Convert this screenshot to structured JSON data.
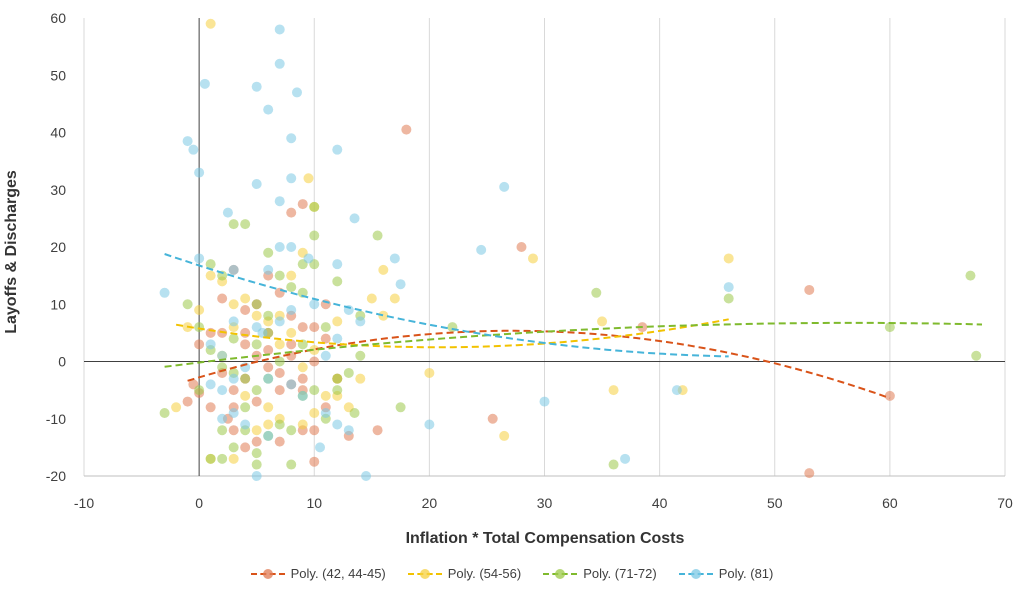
{
  "chart_data": {
    "type": "scatter",
    "title": "",
    "xlabel": "Inflation * Total Compensation Costs",
    "ylabel": "Layoffs & Discharges",
    "xlim": [
      -10,
      70
    ],
    "ylim": [
      -20,
      60
    ],
    "x_ticks": [
      -10,
      0,
      10,
      20,
      30,
      40,
      50,
      60,
      70
    ],
    "y_ticks": [
      -20,
      -10,
      0,
      10,
      20,
      30,
      40,
      50,
      60
    ],
    "grid": "vertical",
    "legend_position": "bottom",
    "series": [
      {
        "name": "Poly. (42, 44-45)",
        "color": "#e07b54",
        "trend_color": "#d95319",
        "trend_x": [
          -1,
          60
        ],
        "points": [
          [
            18,
            40.5
          ],
          [
            9,
            27.5
          ],
          [
            8,
            26
          ],
          [
            28,
            20
          ],
          [
            53,
            12.5
          ],
          [
            38.5,
            6
          ],
          [
            60,
            -6
          ],
          [
            53,
            -19.5
          ],
          [
            25.5,
            -10
          ],
          [
            15.5,
            -12
          ],
          [
            13,
            -13
          ],
          [
            10,
            -17.5
          ],
          [
            4,
            -15
          ],
          [
            2.5,
            -10
          ],
          [
            3,
            -8
          ],
          [
            5,
            -7
          ],
          [
            7,
            -5
          ],
          [
            9,
            -5
          ],
          [
            11,
            -8
          ],
          [
            12,
            -3
          ],
          [
            10,
            0
          ],
          [
            8,
            1
          ],
          [
            6,
            2
          ],
          [
            4,
            3
          ],
          [
            2,
            5
          ],
          [
            0,
            3
          ],
          [
            -0.5,
            -4
          ],
          [
            0,
            -5.5
          ],
          [
            -1,
            -7
          ],
          [
            1,
            -8
          ],
          [
            3,
            -12
          ],
          [
            5,
            -14
          ],
          [
            7,
            -14
          ],
          [
            9,
            -12
          ],
          [
            10,
            -12
          ],
          [
            11,
            4
          ],
          [
            11,
            10
          ],
          [
            10,
            6
          ],
          [
            9,
            6
          ],
          [
            8,
            8
          ],
          [
            7,
            12
          ],
          [
            6,
            15
          ],
          [
            5,
            10
          ],
          [
            4,
            9
          ],
          [
            3,
            16
          ],
          [
            2,
            11
          ],
          [
            1,
            5
          ],
          [
            2,
            -2
          ],
          [
            4,
            -3
          ],
          [
            6,
            -1
          ],
          [
            8,
            -4
          ],
          [
            9,
            -3
          ],
          [
            7,
            -2
          ],
          [
            5,
            1
          ],
          [
            3,
            -5
          ],
          [
            4,
            5
          ],
          [
            6,
            5
          ],
          [
            8,
            3
          ]
        ]
      },
      {
        "name": "Poly. (54-56)",
        "color": "#f5d040",
        "trend_color": "#f2c200",
        "trend_x": [
          -2,
          46
        ],
        "points": [
          [
            1,
            59
          ],
          [
            9.5,
            32
          ],
          [
            10,
            27
          ],
          [
            29,
            18
          ],
          [
            46,
            18
          ],
          [
            35,
            7
          ],
          [
            26.5,
            -13
          ],
          [
            36,
            -5
          ],
          [
            42,
            -5
          ],
          [
            20,
            -2
          ],
          [
            14,
            -3
          ],
          [
            15,
            11
          ],
          [
            16,
            16
          ],
          [
            17,
            11
          ],
          [
            13,
            -8
          ],
          [
            12,
            -6
          ],
          [
            9,
            -1
          ],
          [
            7,
            3
          ],
          [
            5,
            8
          ],
          [
            3,
            10
          ],
          [
            2,
            14
          ],
          [
            1,
            15
          ],
          [
            0,
            9
          ],
          [
            -1,
            6
          ],
          [
            -2,
            -8
          ],
          [
            1,
            -17
          ],
          [
            3,
            -17
          ],
          [
            5,
            -12
          ],
          [
            7,
            -10
          ],
          [
            9,
            -11
          ],
          [
            10,
            -9
          ],
          [
            11,
            -6
          ],
          [
            12,
            -3
          ],
          [
            8,
            5
          ],
          [
            6,
            7
          ],
          [
            4,
            11
          ],
          [
            3,
            6
          ],
          [
            2,
            1
          ],
          [
            4,
            -6
          ],
          [
            6,
            -8
          ],
          [
            7,
            8
          ],
          [
            9,
            19
          ],
          [
            8,
            15
          ],
          [
            6,
            -11
          ],
          [
            10,
            2
          ],
          [
            12,
            7
          ],
          [
            16,
            8
          ]
        ]
      },
      {
        "name": "Poly. (71-72)",
        "color": "#9cc94a",
        "trend_color": "#7fba2d",
        "trend_x": [
          -3,
          68
        ],
        "points": [
          [
            67,
            15
          ],
          [
            67.5,
            1
          ],
          [
            60,
            6
          ],
          [
            46,
            11
          ],
          [
            34.5,
            12
          ],
          [
            36,
            -18
          ],
          [
            22,
            6
          ],
          [
            17.5,
            -8
          ],
          [
            15.5,
            22
          ],
          [
            13.5,
            -9
          ],
          [
            12,
            -3
          ],
          [
            10,
            22
          ],
          [
            10,
            27
          ],
          [
            10,
            17
          ],
          [
            9,
            17
          ],
          [
            9,
            12
          ],
          [
            8,
            13
          ],
          [
            7,
            15
          ],
          [
            6,
            19
          ],
          [
            5,
            10
          ],
          [
            4,
            24
          ],
          [
            3,
            24
          ],
          [
            2,
            15
          ],
          [
            1,
            17
          ],
          [
            0,
            6
          ],
          [
            -1,
            10
          ],
          [
            -3,
            -9
          ],
          [
            1,
            -17
          ],
          [
            2,
            -17
          ],
          [
            3,
            -15
          ],
          [
            4,
            -12
          ],
          [
            5,
            -16
          ],
          [
            6,
            -13
          ],
          [
            7,
            -11
          ],
          [
            8,
            -12
          ],
          [
            9,
            -6
          ],
          [
            10,
            -5
          ],
          [
            11,
            -10
          ],
          [
            12,
            -5
          ],
          [
            13,
            -2
          ],
          [
            14,
            1
          ],
          [
            7,
            0
          ],
          [
            6,
            -3
          ],
          [
            5,
            -5
          ],
          [
            4,
            -3
          ],
          [
            3,
            -2
          ],
          [
            2,
            -1
          ],
          [
            1,
            2
          ],
          [
            0,
            -5
          ],
          [
            3,
            4
          ],
          [
            5,
            3
          ],
          [
            6,
            8
          ],
          [
            8,
            -18
          ],
          [
            5,
            -18
          ],
          [
            9,
            3
          ],
          [
            11,
            6
          ],
          [
            2,
            -12
          ],
          [
            4,
            -8
          ],
          [
            6,
            5
          ],
          [
            14,
            8
          ],
          [
            12,
            14
          ]
        ]
      },
      {
        "name": "Poly. (81)",
        "color": "#7cc8e4",
        "trend_color": "#46b4d9",
        "trend_x": [
          -3,
          46
        ],
        "points": [
          [
            7,
            58
          ],
          [
            7,
            52
          ],
          [
            0.5,
            48.5
          ],
          [
            5,
            48
          ],
          [
            8.5,
            47
          ],
          [
            6,
            44
          ],
          [
            8,
            39
          ],
          [
            -1,
            38.5
          ],
          [
            -0.5,
            37
          ],
          [
            12,
            37
          ],
          [
            0,
            33
          ],
          [
            5,
            31
          ],
          [
            8,
            32
          ],
          [
            26.5,
            30.5
          ],
          [
            2.5,
            26
          ],
          [
            7,
            28
          ],
          [
            13.5,
            25
          ],
          [
            24.5,
            19.5
          ],
          [
            17,
            18
          ],
          [
            46,
            13
          ],
          [
            17.5,
            13.5
          ],
          [
            -3,
            12
          ],
          [
            0,
            18
          ],
          [
            3,
            16
          ],
          [
            7,
            20
          ],
          [
            8,
            20
          ],
          [
            9.5,
            18
          ],
          [
            12,
            17
          ],
          [
            6,
            16
          ],
          [
            10,
            10
          ],
          [
            8,
            9
          ],
          [
            5,
            6
          ],
          [
            3,
            7
          ],
          [
            1,
            3
          ],
          [
            2,
            1
          ],
          [
            4,
            -1
          ],
          [
            6,
            -3
          ],
          [
            8,
            -4
          ],
          [
            9,
            -6
          ],
          [
            11,
            -9
          ],
          [
            12,
            -11
          ],
          [
            13,
            -12
          ],
          [
            14.5,
            -20
          ],
          [
            20,
            -11
          ],
          [
            30,
            -7
          ],
          [
            41.5,
            -5
          ],
          [
            37,
            -17
          ],
          [
            10.5,
            -15
          ],
          [
            5,
            -20
          ],
          [
            3,
            -9
          ],
          [
            2,
            -10
          ],
          [
            4,
            -11
          ],
          [
            6,
            -13
          ],
          [
            1,
            -4
          ],
          [
            2,
            -5
          ],
          [
            3,
            -3
          ],
          [
            11,
            1
          ],
          [
            12,
            4
          ],
          [
            14,
            7
          ],
          [
            13,
            9
          ],
          [
            5.5,
            5
          ],
          [
            7,
            7
          ]
        ]
      }
    ]
  }
}
